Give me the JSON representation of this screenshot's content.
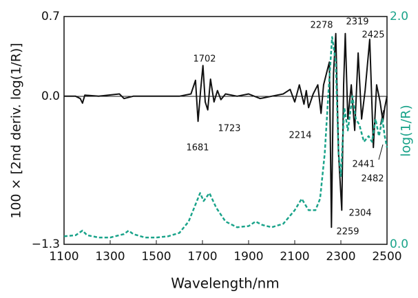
{
  "chart_data": {
    "type": "line",
    "xlabel": "Wavelength/nm",
    "ylabel": "100 × [2nd deriv. log(1/R)]",
    "y2label": "log(1/R)",
    "xlim": [
      1100,
      2500
    ],
    "xticks": [
      1100,
      1300,
      1500,
      1700,
      1900,
      2100,
      2300,
      2500
    ],
    "ylim": [
      -1.3,
      0.7
    ],
    "yticks": [
      {
        "value": -1.3,
        "label": "−1.3"
      },
      {
        "value": 0,
        "label": "0.0"
      },
      {
        "value": 0.7,
        "label": "0.7"
      }
    ],
    "y2lim": [
      0,
      2
    ],
    "y2ticks": [
      {
        "value": 0,
        "label": "0.0"
      },
      {
        "value": 2,
        "label": "2.0"
      }
    ],
    "y2color": "#1aa38a",
    "series": [
      {
        "color": "#111111",
        "dash": false,
        "x": [
          1100,
          1150,
          1170,
          1180,
          1190,
          1250,
          1340,
          1360,
          1400,
          1500,
          1600,
          1650,
          1670,
          1681,
          1692,
          1702,
          1712,
          1723,
          1735,
          1750,
          1765,
          1780,
          1800,
          1850,
          1900,
          1950,
          2000,
          2050,
          2080,
          2100,
          2120,
          2140,
          2150,
          2160,
          2180,
          2200,
          2214,
          2225,
          2240,
          2250,
          2259,
          2268,
          2278,
          2290,
          2304,
          2312,
          2319,
          2330,
          2345,
          2360,
          2375,
          2390,
          2405,
          2425,
          2441,
          2455,
          2470,
          2482,
          2490,
          2500
        ],
        "values": [
          0,
          0,
          -0.02,
          -0.06,
          0.01,
          0,
          0.02,
          -0.02,
          0,
          0,
          0,
          0.02,
          0.14,
          -0.22,
          0.05,
          0.27,
          -0.05,
          -0.12,
          0.15,
          -0.05,
          0.05,
          -0.03,
          0.02,
          0,
          0.02,
          -0.02,
          0,
          0.02,
          0.06,
          -0.05,
          0.1,
          -0.07,
          0.05,
          -0.1,
          0.02,
          0.1,
          -0.15,
          0.1,
          0.22,
          0.3,
          -1.15,
          0.2,
          0.55,
          -0.5,
          -1.0,
          0.1,
          0.55,
          -0.2,
          0.1,
          -0.3,
          0.38,
          -0.2,
          0.05,
          0.5,
          -0.45,
          0.1,
          -0.05,
          -0.22,
          -0.1,
          0
        ]
      },
      {
        "color": "#1aa38a",
        "dash": true,
        "axis": "y2",
        "x": [
          1100,
          1150,
          1180,
          1200,
          1250,
          1300,
          1360,
          1380,
          1400,
          1450,
          1500,
          1550,
          1600,
          1640,
          1670,
          1690,
          1705,
          1730,
          1760,
          1800,
          1850,
          1900,
          1930,
          1960,
          2000,
          2050,
          2100,
          2130,
          2160,
          2190,
          2210,
          2230,
          2245,
          2262,
          2278,
          2290,
          2300,
          2315,
          2330,
          2350,
          2365,
          2380,
          2400,
          2420,
          2435,
          2450,
          2465,
          2480,
          2490,
          2500
        ],
        "values": [
          0.07,
          0.08,
          0.12,
          0.08,
          0.06,
          0.06,
          0.09,
          0.12,
          0.09,
          0.06,
          0.06,
          0.07,
          0.1,
          0.2,
          0.35,
          0.45,
          0.38,
          0.45,
          0.32,
          0.2,
          0.15,
          0.16,
          0.2,
          0.17,
          0.15,
          0.18,
          0.3,
          0.4,
          0.3,
          0.3,
          0.4,
          0.8,
          1.3,
          1.82,
          1.6,
          0.8,
          0.6,
          1.2,
          1.0,
          1.3,
          1.1,
          1.05,
          0.9,
          0.95,
          0.9,
          1.1,
          0.95,
          1.1,
          0.95,
          0.85
        ]
      }
    ],
    "annotations": [
      "1702",
      "1681",
      "1723",
      "2214",
      "2278",
      "2319",
      "2425",
      "2441",
      "2482",
      "2304",
      "2259"
    ]
  }
}
